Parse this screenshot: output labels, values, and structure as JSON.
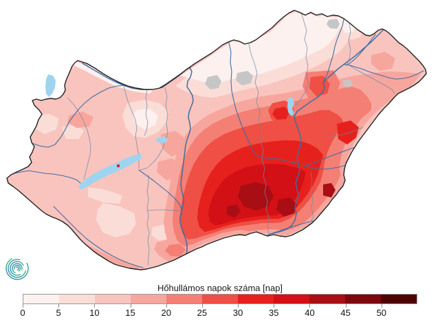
{
  "title": "Hőhullámos napok száma [nap]",
  "legend": {
    "tick_labels": [
      "0",
      "5",
      "10",
      "15",
      "20",
      "25",
      "30",
      "35",
      "40",
      "45",
      "50"
    ],
    "tick_values": [
      0,
      5,
      10,
      15,
      20,
      25,
      30,
      35,
      40,
      45,
      50
    ],
    "colors": [
      "#fcf1ef",
      "#fbddd8",
      "#f9c4be",
      "#f7a69e",
      "#f47f75",
      "#ef4f44",
      "#e6211d",
      "#d31015",
      "#a80e13",
      "#7b080c",
      "#4e0204"
    ],
    "border_color": "#999999"
  },
  "map": {
    "region": "Hungary",
    "colors": {
      "border": "#1f1f1f",
      "river": "#3f6da0",
      "county": "#6d88a5",
      "lake": "#9fd4ef",
      "lake_edge": "#64aad6",
      "urban": "#c6c6c6",
      "background": "#ffffff"
    }
  },
  "logo": {
    "name": "meteorological-service-spiral-logo",
    "colors": [
      "#4cbd7c",
      "#2ba093",
      "#4384bf"
    ]
  },
  "chart_data": {
    "type": "choropleth-map",
    "title": "Hőhullámos napok száma [nap]",
    "unit": "nap",
    "region": "Hungary",
    "scale_breaks": [
      0,
      5,
      10,
      15,
      20,
      25,
      30,
      35,
      40,
      45,
      50
    ],
    "scale_colors": [
      "#fcf1ef",
      "#fbddd8",
      "#f9c4be",
      "#f7a69e",
      "#f47f75",
      "#ef4f44",
      "#e6211d",
      "#d31015",
      "#a80e13",
      "#7b080c",
      "#4e0204"
    ],
    "legend_position": "bottom",
    "values_approx": {
      "northern-mountains": "0-10",
      "northwest-kisalfold": "0-10",
      "west-transdanubia": "10-15",
      "south-transdanubia": "10-20",
      "central-plain": "20-30",
      "danube-valley-south": "25-35",
      "southeast-plain-core": "35-45",
      "northeast-nyirseg": "10-20"
    }
  }
}
